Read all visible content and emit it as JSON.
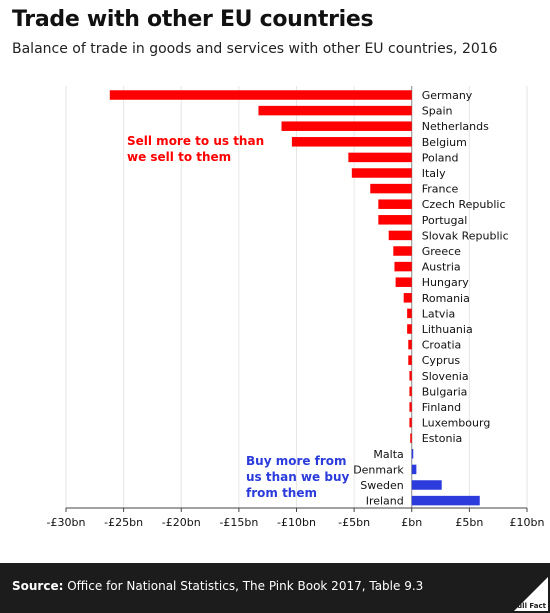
{
  "header": {
    "title": "Trade with other EU countries",
    "subtitle": "Balance of trade in goods and services with other EU countries, 2016"
  },
  "footer": {
    "source_label": "Source:",
    "source_text": "Office for National Statistics, The Pink Book 2017, Table 9.3",
    "logo_text": "Full Fact"
  },
  "chart_data": {
    "type": "bar",
    "orientation": "horizontal",
    "categories": [
      "Germany",
      "Spain",
      "Netherlands",
      "Belgium",
      "Poland",
      "Italy",
      "France",
      "Czech Republic",
      "Portugal",
      "Slovak Republic",
      "Greece",
      "Austria",
      "Hungary",
      "Romania",
      "Latvia",
      "Lithuania",
      "Croatia",
      "Cyprus",
      "Slovenia",
      "Bulgaria",
      "Finland",
      "Luxembourg",
      "Estonia",
      "Malta",
      "Denmark",
      "Sweden",
      "Ireland"
    ],
    "values": [
      -26.2,
      -13.3,
      -11.3,
      -10.4,
      -5.5,
      -5.2,
      -3.6,
      -2.9,
      -2.9,
      -2.0,
      -1.6,
      -1.5,
      -1.4,
      -0.7,
      -0.4,
      -0.4,
      -0.3,
      -0.3,
      -0.2,
      -0.2,
      -0.2,
      -0.2,
      -0.1,
      0.1,
      0.4,
      2.6,
      5.9
    ],
    "xlim": [
      -30,
      10
    ],
    "xticks": [
      -30,
      -25,
      -20,
      -15,
      -10,
      -5,
      0,
      5,
      10
    ],
    "xtick_labels": [
      "-£30bn",
      "-£25bn",
      "-£20bn",
      "-£15bn",
      "-£10bn",
      "-£5bn",
      "£bn",
      "£5bn",
      "£10bn"
    ],
    "grid": true,
    "colors": {
      "negative": "#ff0000",
      "positive": "#2b3bdc"
    },
    "annotations": [
      {
        "text_lines": [
          "Sell more to us than",
          "we sell to them"
        ],
        "color": "#ff0000"
      },
      {
        "text_lines": [
          "Buy more from",
          "us than we buy",
          "from them"
        ],
        "color": "#2b3bdc"
      }
    ]
  }
}
